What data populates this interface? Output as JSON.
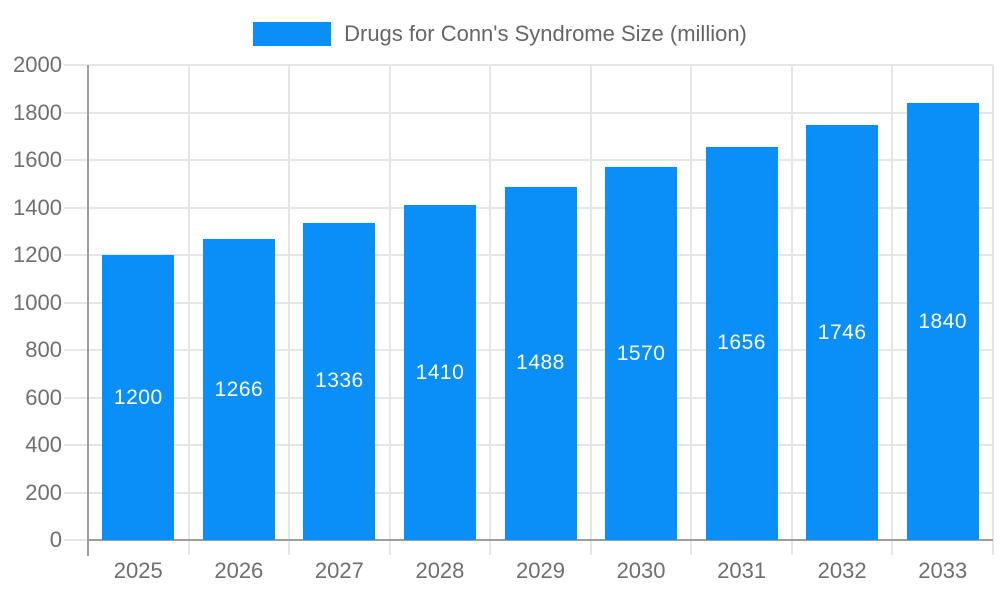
{
  "chart_data": {
    "type": "bar",
    "title": "",
    "legend": "Drugs for Conn's Syndrome Size (million)",
    "legend_position": "top-center",
    "categories": [
      "2025",
      "2026",
      "2027",
      "2028",
      "2029",
      "2030",
      "2031",
      "2032",
      "2033"
    ],
    "values": [
      1200,
      1266,
      1336,
      1410,
      1488,
      1570,
      1656,
      1746,
      1840
    ],
    "xlabel": "",
    "ylabel": "",
    "ylim": [
      0,
      2000
    ],
    "ytick_step": 200,
    "ytick_labels": [
      "0",
      "200",
      "400",
      "600",
      "800",
      "1000",
      "1200",
      "1400",
      "1600",
      "1800",
      "2000"
    ],
    "grid": true,
    "value_label_position": "inside-center",
    "colors": {
      "bar": "#0a8ef8",
      "grid": "#e6e6e6",
      "axis": "#9e9e9e",
      "axis_label": "#6f6f6f",
      "legend_text": "#666666",
      "bar_label": "#ffffff"
    }
  }
}
